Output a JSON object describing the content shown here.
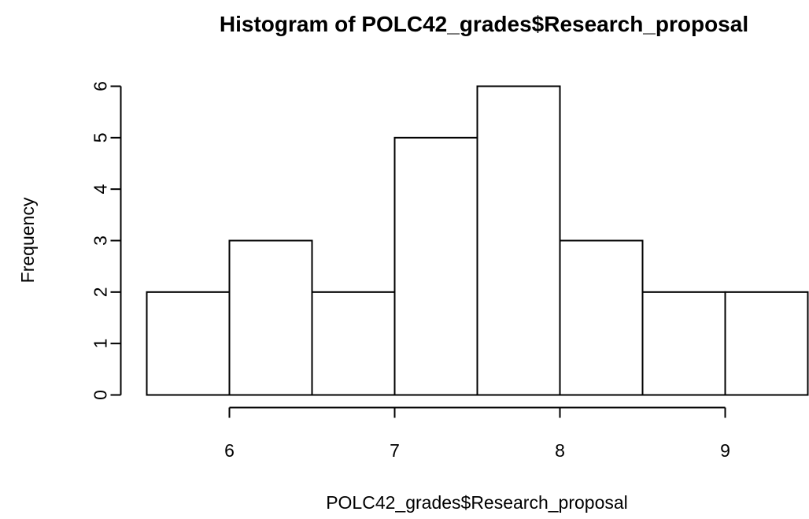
{
  "chart_data": {
    "type": "bar",
    "title": "Histogram of POLC42_grades$Research_proposal",
    "xlabel": "POLC42_grades$Research_proposal",
    "ylabel": "Frequency",
    "bin_edges": [
      5.5,
      6.0,
      6.5,
      7.0,
      7.5,
      8.0,
      8.5,
      9.0,
      9.5
    ],
    "values": [
      2,
      3,
      2,
      5,
      6,
      3,
      2,
      2
    ],
    "xlim": [
      5.5,
      9.5
    ],
    "ylim": [
      0,
      6
    ],
    "xticks": [
      6,
      7,
      8,
      9
    ],
    "yticks": [
      0,
      1,
      2,
      3,
      4,
      5,
      6
    ],
    "grid": false,
    "bar_fill": "#ffffff",
    "bar_stroke": "#000000"
  }
}
